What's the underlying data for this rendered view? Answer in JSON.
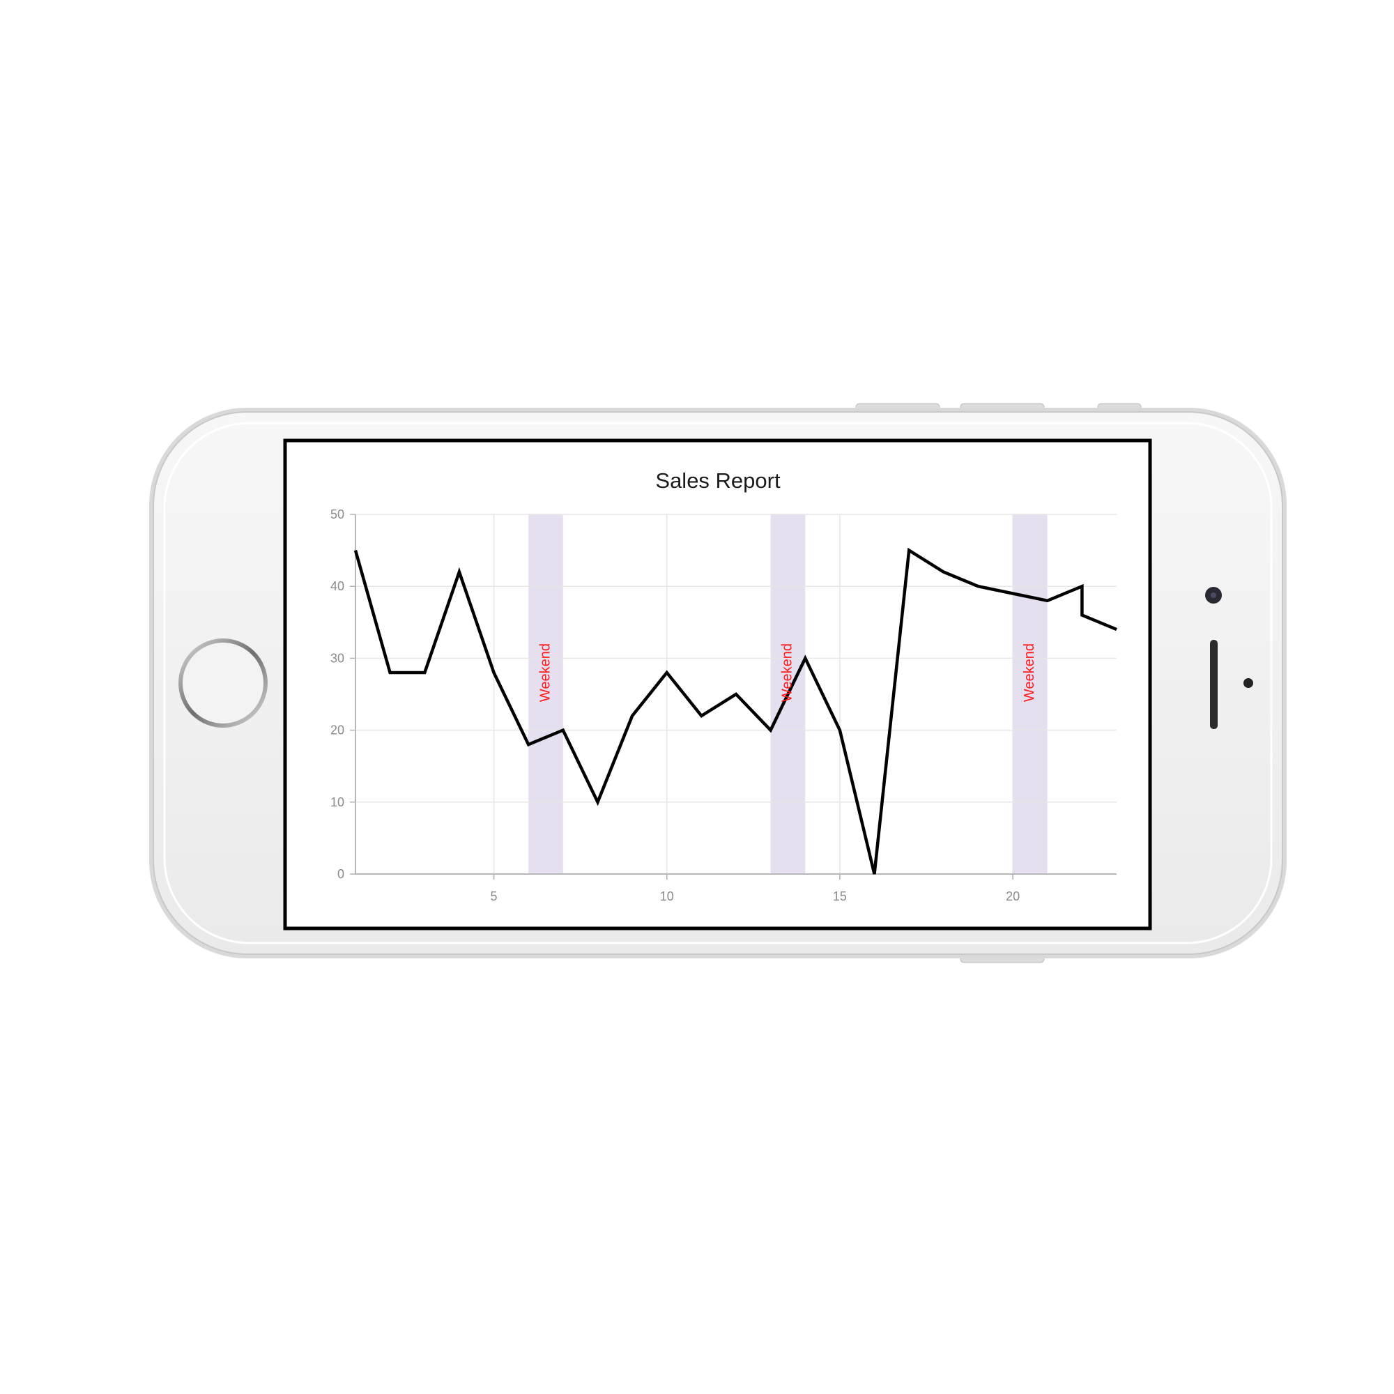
{
  "device": {
    "model": "iphone",
    "orientation": "landscape",
    "body_color": "#f0f0f0",
    "screen_border_color": "#000000"
  },
  "chart_data": {
    "type": "line",
    "title": "Sales Report",
    "xlabel": "",
    "ylabel": "",
    "xlim": [
      1,
      23
    ],
    "ylim": [
      0,
      50
    ],
    "x_ticks": [
      5,
      10,
      15,
      20
    ],
    "y_ticks": [
      0,
      10,
      20,
      30,
      40,
      50
    ],
    "grid": true,
    "legend": "none",
    "series": [
      {
        "color": "#000000",
        "x": [
          1,
          2,
          3,
          4,
          5,
          6,
          7,
          8,
          9,
          10,
          11,
          12,
          13,
          14,
          15,
          16,
          17,
          18,
          19,
          20,
          21,
          22,
          22,
          23
        ],
        "y": [
          45,
          28,
          28,
          42,
          28,
          18,
          20,
          10,
          22,
          28,
          22,
          25,
          20,
          30,
          20,
          0,
          45,
          42,
          40,
          39,
          38,
          40,
          36,
          34
        ]
      }
    ],
    "bands": [
      {
        "from": 6,
        "to": 7,
        "label": "Weekend"
      },
      {
        "from": 13,
        "to": 14,
        "label": "Weekend"
      },
      {
        "from": 20,
        "to": 21,
        "label": "Weekend"
      }
    ],
    "band_color": "#e5dff0",
    "band_label_color": "#ff1a1a"
  }
}
